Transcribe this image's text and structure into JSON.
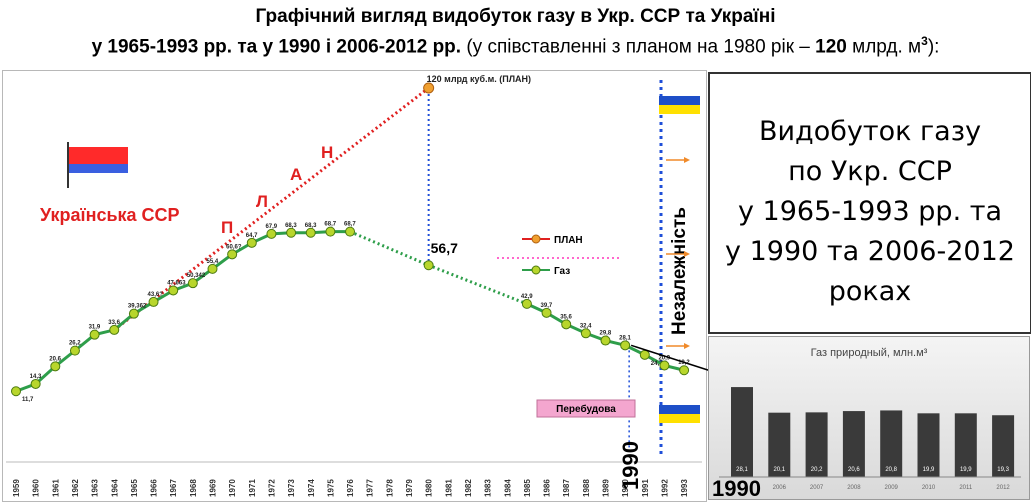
{
  "header": {
    "line1": "Графічний вигляд видобуток газу в Укр. ССР та Україні",
    "line2_bold": "у 1965-1993 рр. та у 1990 і 2006-2012 рр.",
    "line2_normal_a": " (у співставленні з планом на 1980 рік – ",
    "line2_bold_b": "120",
    "line2_normal_c": " млрд. м",
    "line2_sup": "3",
    "line2_normal_d": "):"
  },
  "left_panel": {
    "republic_label": "Українська ССР",
    "plan_letters": [
      "П",
      "Л",
      "А",
      "Н"
    ],
    "plan_point_label": "120 млрд куб.м. (ПЛАН)",
    "mark_1980_label": "56,7",
    "independence_label": "Незалежність",
    "perestroika_label": "Перебудова",
    "year_1990_label": "1990",
    "legend": {
      "plan": "ПЛАН",
      "gas": "Газ"
    }
  },
  "right_box": {
    "lines": [
      "Видобуток газу",
      "по Укр. ССР",
      "у 1965-1993 рр. та",
      "у 1990 та 2006-2012",
      "роках"
    ]
  },
  "bar_panel": {
    "title": "Газ природный, млн.м³",
    "year_label_big": "1990"
  },
  "colors": {
    "gas_line": "#2e9e4a",
    "gas_marker": "#b8d62c",
    "plan_line": "#e02020",
    "plan_marker": "#f0a030",
    "guide_blue": "#1f4fd8",
    "republic_red": "#e02020",
    "ussr_flag_red": "#ff2a2a",
    "ussr_flag_blue": "#3a5fe0",
    "ukr_flag_blue": "#1e4fc8",
    "ukr_flag_yellow": "#ffe000",
    "perestroika_bg": "#f4a6cf",
    "arrow_orange": "#f08a2a",
    "bar_fill": "#3a3a3a"
  },
  "chart_data": [
    {
      "type": "line",
      "x_categories": [
        "1959",
        "1960",
        "1961",
        "1962",
        "1963",
        "1964",
        "1965",
        "1966",
        "1967",
        "1968",
        "1969",
        "1970",
        "1971",
        "1972",
        "1973",
        "1974",
        "1975",
        "1976",
        "1977",
        "1978",
        "1979",
        "1980",
        "1981",
        "1982",
        "1983",
        "1984",
        "1985",
        "1986",
        "1987",
        "1988",
        "1989",
        "1990",
        "1991",
        "1992",
        "1993"
      ],
      "series": [
        {
          "name": "Газ",
          "values": [
            11.7,
            14.3,
            20.6,
            26.2,
            31.9,
            33.6,
            null,
            null,
            null,
            null,
            null,
            null,
            null,
            null,
            null,
            null,
            null,
            null,
            null,
            null,
            null,
            56.7,
            null,
            null,
            null,
            null,
            42.9,
            39.7,
            35.6,
            32.4,
            29.8,
            28.1,
            24.7,
            20.9,
            19.2
          ],
          "value_labels": [
            "11,7",
            "14,3",
            "20,6",
            "26,2",
            "31,9",
            "33,6",
            "39,362",
            "43,6?",
            "47,663",
            "50,342",
            "55,4",
            "60,6?",
            "64,7",
            "67,9",
            "68,3",
            "68,3",
            "68,7",
            "68,7",
            "",
            "",
            "",
            "56,7",
            "",
            "",
            "",
            "",
            "42,9",
            "39,7",
            "35,6",
            "32,4",
            "29,8",
            "28,1",
            "24,7",
            "20,9",
            "19,2"
          ]
        },
        {
          "name": "ПЛАН",
          "values": [
            null,
            null,
            null,
            null,
            null,
            33.6,
            null,
            null,
            null,
            null,
            null,
            null,
            null,
            null,
            null,
            null,
            null,
            null,
            null,
            null,
            null,
            120,
            null,
            null,
            null,
            null,
            null,
            null,
            null,
            null,
            null,
            null,
            null,
            null,
            null
          ]
        }
      ],
      "xlabel": "",
      "ylabel": "",
      "legend_position": "center-right"
    },
    {
      "type": "bar",
      "title": "Газ природный, млн.м³",
      "categories": [
        "1990",
        "2006",
        "2007",
        "2008",
        "2009",
        "2010",
        "2011",
        "2012"
      ],
      "values": [
        28.1,
        20.1,
        20.2,
        20.6,
        20.8,
        19.9,
        19.9,
        19.3
      ],
      "value_labels": [
        "28,1",
        "20,1",
        "20,2",
        "20,6",
        "20,8",
        "19,9",
        "19,9",
        "19,3"
      ]
    }
  ]
}
